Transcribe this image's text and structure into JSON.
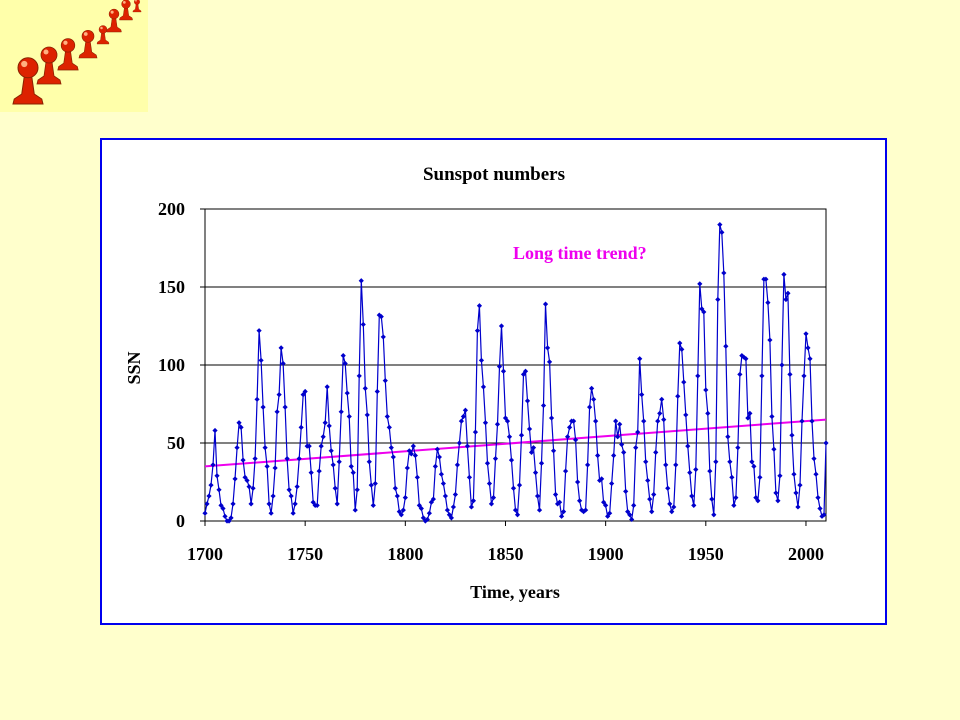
{
  "colors": {
    "page_background": "#ffffcc",
    "frame_border": "#0000ee",
    "series": "#0000cc",
    "trend": "#ee00ee",
    "annotation": "#ee00ee",
    "logo": "#dd2200"
  },
  "logo": {
    "icon": "red-pawn-pieces-icon"
  },
  "chart_data": {
    "type": "line",
    "title": "Sunspot numbers",
    "xlabel": "Time, years",
    "ylabel": "SSN",
    "xlim": [
      1700,
      2010
    ],
    "ylim": [
      0,
      200
    ],
    "xticks": [
      1700,
      1750,
      1800,
      1850,
      1900,
      1950,
      2000
    ],
    "yticks": [
      0,
      50,
      100,
      150,
      200
    ],
    "grid": "horizontal",
    "legend": "none",
    "annotation": "Long time trend?",
    "series": [
      {
        "x": [
          1700,
          1701,
          1702,
          1703,
          1704,
          1705,
          1706,
          1707,
          1708,
          1709,
          1710,
          1711,
          1712,
          1713,
          1714,
          1715,
          1716,
          1717,
          1718,
          1719,
          1720,
          1721,
          1722,
          1723,
          1724,
          1725,
          1726,
          1727,
          1728,
          1729,
          1730,
          1731,
          1732,
          1733,
          1734,
          1735,
          1736,
          1737,
          1738,
          1739,
          1740,
          1741,
          1742,
          1743,
          1744,
          1745,
          1746,
          1747,
          1748,
          1749,
          1750,
          1751,
          1752,
          1753,
          1754,
          1755,
          1756,
          1757,
          1758,
          1759,
          1760,
          1761,
          1762,
          1763,
          1764,
          1765,
          1766,
          1767,
          1768,
          1769,
          1770,
          1771,
          1772,
          1773,
          1774,
          1775,
          1776,
          1777,
          1778,
          1779,
          1780,
          1781,
          1782,
          1783,
          1784,
          1785,
          1786,
          1787,
          1788,
          1789,
          1790,
          1791,
          1792,
          1793,
          1794,
          1795,
          1796,
          1797,
          1798,
          1799,
          1800,
          1801,
          1802,
          1803,
          1804,
          1805,
          1806,
          1807,
          1808,
          1809,
          1810,
          1811,
          1812,
          1813,
          1814,
          1815,
          1816,
          1817,
          1818,
          1819,
          1820,
          1821,
          1822,
          1823,
          1824,
          1825,
          1826,
          1827,
          1828,
          1829,
          1830,
          1831,
          1832,
          1833,
          1834,
          1835,
          1836,
          1837,
          1838,
          1839,
          1840,
          1841,
          1842,
          1843,
          1844,
          1845,
          1846,
          1847,
          1848,
          1849,
          1850,
          1851,
          1852,
          1853,
          1854,
          1855,
          1856,
          1857,
          1858,
          1859,
          1860,
          1861,
          1862,
          1863,
          1864,
          1865,
          1866,
          1867,
          1868,
          1869,
          1870,
          1871,
          1872,
          1873,
          1874,
          1875,
          1876,
          1877,
          1878,
          1879,
          1880,
          1881,
          1882,
          1883,
          1884,
          1885,
          1886,
          1887,
          1888,
          1889,
          1890,
          1891,
          1892,
          1893,
          1894,
          1895,
          1896,
          1897,
          1898,
          1899,
          1900,
          1901,
          1902,
          1903,
          1904,
          1905,
          1906,
          1907,
          1908,
          1909,
          1910,
          1911,
          1912,
          1913,
          1914,
          1915,
          1916,
          1917,
          1918,
          1919,
          1920,
          1921,
          1922,
          1923,
          1924,
          1925,
          1926,
          1927,
          1928,
          1929,
          1930,
          1931,
          1932,
          1933,
          1934,
          1935,
          1936,
          1937,
          1938,
          1939,
          1940,
          1941,
          1942,
          1943,
          1944,
          1945,
          1946,
          1947,
          1948,
          1949,
          1950,
          1951,
          1952,
          1953,
          1954,
          1955,
          1956,
          1957,
          1958,
          1959,
          1960,
          1961,
          1962,
          1963,
          1964,
          1965,
          1966,
          1967,
          1968,
          1969,
          1970,
          1971,
          1972,
          1973,
          1974,
          1975,
          1976,
          1977,
          1978,
          1979,
          1980,
          1981,
          1982,
          1983,
          1984,
          1985,
          1986,
          1987,
          1988,
          1989,
          1990,
          1991,
          1992,
          1993,
          1994,
          1995,
          1996,
          1997,
          1998,
          1999,
          2000,
          2001,
          2002,
          2003,
          2004,
          2005,
          2006,
          2007,
          2008,
          2009,
          2010
        ],
        "y": [
          5,
          11,
          16,
          23,
          36,
          58,
          29,
          20,
          10,
          8,
          3,
          0,
          0,
          2,
          11,
          27,
          47,
          63,
          60,
          39,
          28,
          26,
          22,
          11,
          21,
          40,
          78,
          122,
          103,
          73,
          47,
          35,
          11,
          5,
          16,
          34,
          70,
          81,
          111,
          101,
          73,
          40,
          20,
          16,
          5,
          11,
          22,
          40,
          60,
          81,
          83,
          48,
          48,
          31,
          12,
          10,
          10,
          32,
          48,
          54,
          63,
          86,
          61,
          45,
          36,
          21,
          11,
          38,
          70,
          106,
          101,
          82,
          67,
          35,
          31,
          7,
          20,
          93,
          154,
          126,
          85,
          68,
          38,
          23,
          10,
          24,
          83,
          132,
          131,
          118,
          90,
          67,
          60,
          47,
          41,
          21,
          16,
          6,
          4,
          7,
          15,
          34,
          45,
          43,
          48,
          42,
          28,
          10,
          8,
          2,
          0,
          1,
          5,
          12,
          14,
          35,
          46,
          41,
          30,
          24,
          16,
          7,
          4,
          2,
          9,
          17,
          36,
          50,
          64,
          67,
          71,
          48,
          28,
          9,
          13,
          57,
          122,
          138,
          103,
          86,
          63,
          37,
          24,
          11,
          15,
          40,
          62,
          99,
          125,
          96,
          66,
          64,
          54,
          39,
          21,
          7,
          4,
          23,
          55,
          94,
          96,
          77,
          59,
          44,
          47,
          31,
          16,
          7,
          37,
          74,
          139,
          111,
          102,
          66,
          45,
          17,
          11,
          12,
          3,
          6,
          32,
          54,
          60,
          64,
          64,
          52,
          25,
          13,
          7,
          6,
          7,
          36,
          73,
          85,
          78,
          64,
          42,
          26,
          27,
          12,
          10,
          3,
          5,
          24,
          42,
          64,
          54,
          62,
          49,
          44,
          19,
          6,
          4,
          1,
          10,
          47,
          57,
          104,
          81,
          64,
          38,
          26,
          14,
          6,
          17,
          44,
          64,
          69,
          78,
          65,
          36,
          21,
          11,
          6,
          9,
          36,
          80,
          114,
          110,
          89,
          68,
          48,
          31,
          16,
          10,
          33,
          93,
          152,
          136,
          134,
          84,
          69,
          32,
          14,
          4,
          38,
          142,
          190,
          185,
          159,
          112,
          54,
          38,
          28,
          10,
          15,
          47,
          94,
          106,
          105,
          104,
          66,
          69,
          38,
          35,
          15,
          13,
          28,
          93,
          155,
          155,
          140,
          116,
          67,
          46,
          18,
          13,
          29,
          100,
          158,
          142,
          146,
          94,
          55,
          30,
          18,
          9,
          23,
          64,
          93,
          120,
          111,
          104,
          64,
          40,
          30,
          15,
          8,
          3,
          4,
          50
        ]
      },
      {
        "name": "trend",
        "type": "line",
        "x": [
          1700,
          2010
        ],
        "y": [
          35,
          65
        ]
      }
    ]
  }
}
